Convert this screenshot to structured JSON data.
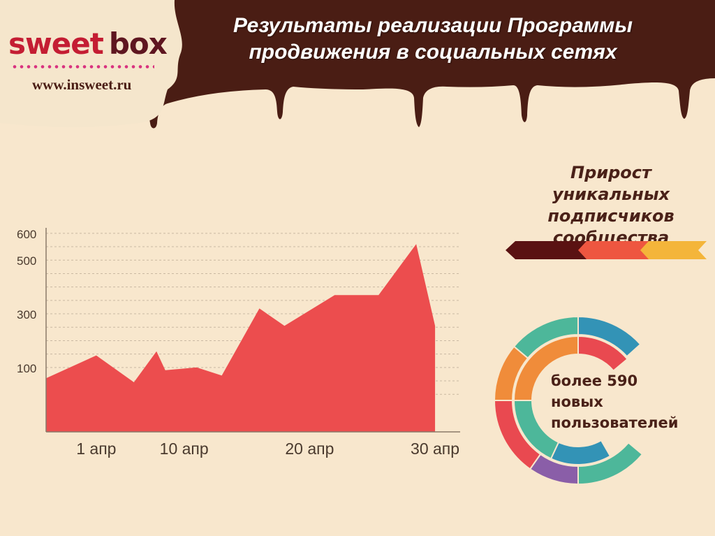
{
  "logo": {
    "brand_left": "sweet",
    "brand_right": "box",
    "url": "www.insweet.ru"
  },
  "title": {
    "line1": "Результаты реализации Программы",
    "line2": "продвижения в социальных сетях"
  },
  "heading": {
    "line1": "Прирост",
    "line2": "уникальных",
    "line3": "подписчиков",
    "line4": "сообщества"
  },
  "stat": {
    "line1": "более 590",
    "line2": "новых",
    "line3": "пользователей"
  },
  "colors": {
    "background": "#f8e7cd",
    "chocolate": "#4a1d14",
    "area": "#ec4d4e",
    "arrow_dark": "#5a1212",
    "arrow_red": "#ee5640",
    "arrow_yellow": "#f4b53a",
    "donut": [
      "#e94950",
      "#4db79a",
      "#f08c3a",
      "#3393b6",
      "#8a5ea8"
    ]
  },
  "icons": [
    "chocolate-drip",
    "arrow-chevrons",
    "ring-chart"
  ],
  "chart_data": {
    "type": "area",
    "title": "",
    "xlabel": "",
    "ylabel": "",
    "y_ticks": [
      100,
      300,
      500,
      600
    ],
    "x_ticks": [
      {
        "label": "1 апр",
        "x": 3
      },
      {
        "label": "10 апр",
        "x": 10
      },
      {
        "label": "20 апр",
        "x": 20
      },
      {
        "label": "30 апр",
        "x": 30
      }
    ],
    "xlim": [
      -1,
      32
    ],
    "ylim": [
      -140,
      610
    ],
    "grid": true,
    "series": [
      {
        "points": [
          [
            -1,
            60
          ],
          [
            3,
            145
          ],
          [
            6,
            45
          ],
          [
            7.8,
            160
          ],
          [
            8.5,
            90
          ],
          [
            11,
            100
          ],
          [
            13,
            70
          ],
          [
            16,
            320
          ],
          [
            18,
            255
          ],
          [
            22,
            370
          ],
          [
            25.5,
            370
          ],
          [
            28.5,
            560
          ],
          [
            30,
            255
          ]
        ]
      }
    ]
  }
}
